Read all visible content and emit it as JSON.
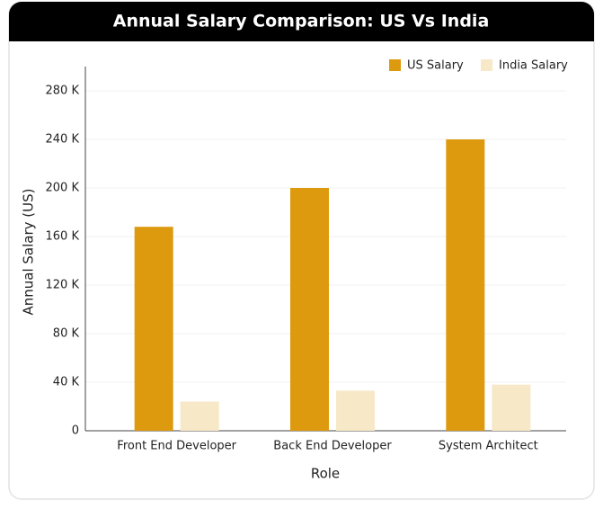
{
  "chart_data": {
    "type": "bar",
    "title": "Annual Salary Comparison: US Vs India",
    "x_label": "Role",
    "y_label": "Annual Salary (US)",
    "categories": [
      "Front End Developer",
      "Back End Developer",
      "System Architect"
    ],
    "series": [
      {
        "name": "US Salary",
        "color": "#dd9a0e",
        "values": [
          168000,
          200000,
          240000
        ]
      },
      {
        "name": "India Salary",
        "color": "#f7e8c8",
        "values": [
          24000,
          33000,
          38000
        ]
      }
    ],
    "ylim": [
      0,
      300000
    ],
    "yticks": [
      0,
      {
        "value": 40000,
        "label": "40 K"
      },
      {
        "value": 80000,
        "label": "80 K"
      },
      {
        "value": 120000,
        "label": "120 K"
      },
      {
        "value": 160000,
        "label": "160 K"
      },
      {
        "value": 200000,
        "label": "200 K"
      },
      {
        "value": 240000,
        "label": "240 K"
      },
      {
        "value": 280000,
        "label": "280 K"
      }
    ],
    "grid": true,
    "legend": "top-right"
  }
}
